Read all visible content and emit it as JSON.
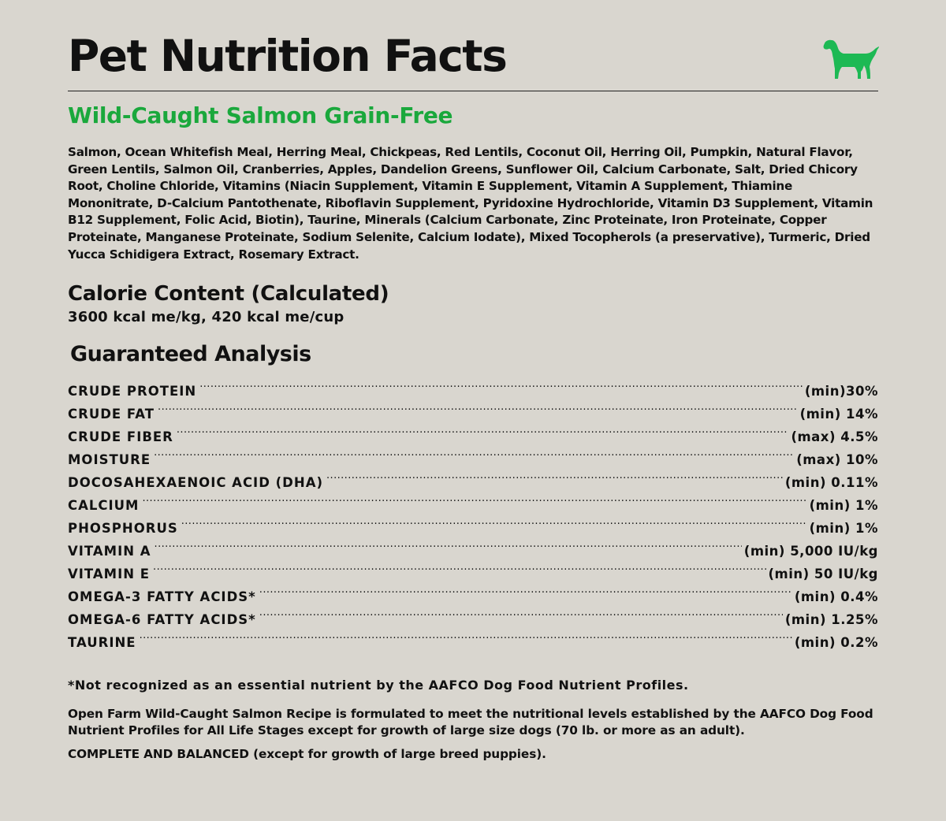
{
  "header": {
    "title": "Pet Nutrition Facts",
    "icon": "dog-icon",
    "accent_color": "#1db954"
  },
  "product": {
    "name": "Wild-Caught Salmon Grain-Free",
    "name_color": "#1aa83c"
  },
  "ingredients": "Salmon, Ocean Whitefish Meal, Herring Meal, Chickpeas, Red Lentils, Coconut Oil, Herring Oil, Pumpkin, Natural Flavor, Green Lentils, Salmon Oil, Cranberries, Apples, Dandelion Greens, Sunflower Oil, Calcium Carbonate, Salt, Dried Chicory Root, Choline Chloride, Vitamins (Niacin Supplement, Vitamin E Supplement, Vitamin A Supplement, Thiamine Mononitrate, D-Calcium Pantothenate, Riboflavin Supplement, Pyridoxine Hydrochloride, Vitamin D3 Supplement, Vitamin B12 Supplement, Folic Acid, Biotin), Taurine, Minerals (Calcium Carbonate, Zinc Proteinate, Iron Proteinate, Copper Proteinate, Manganese Proteinate, Sodium Selenite, Calcium Iodate), Mixed Tocopherols (a preservative), Turmeric, Dried Yucca Schidigera Extract, Rosemary Extract.",
  "calorie": {
    "heading": "Calorie Content (Calculated)",
    "value": "3600 kcal me/kg, 420 kcal me/cup"
  },
  "guaranteed_analysis": {
    "heading": "Guaranteed Analysis",
    "rows": [
      {
        "name": "CRUDE PROTEIN",
        "value": "(min)30%"
      },
      {
        "name": "CRUDE FAT",
        "value": "(min) 14%"
      },
      {
        "name": "CRUDE FIBER",
        "value": "(max) 4.5%"
      },
      {
        "name": "MOISTURE",
        "value": "(max) 10%"
      },
      {
        "name": "DOCOSAHEXAENOIC ACID (DHA)",
        "value": "(min) 0.11%"
      },
      {
        "name": "CALCIUM",
        "value": "(min) 1%"
      },
      {
        "name": "PHOSPHORUS",
        "value": "(min) 1%"
      },
      {
        "name": "VITAMIN A",
        "value": "(min) 5,000 IU/kg"
      },
      {
        "name": "VITAMIN E",
        "value": "(min) 50 IU/kg"
      },
      {
        "name": "OMEGA-3 FATTY ACIDS*",
        "value": "(min) 0.4%"
      },
      {
        "name": "OMEGA-6 FATTY ACIDS*",
        "value": "(min) 1.25%"
      },
      {
        "name": "TAURINE",
        "value": "(min) 0.2%"
      }
    ]
  },
  "footnote": "*Not recognized as an essential nutrient by the AAFCO Dog Food Nutrient Profiles.",
  "statement": "Open Farm Wild-Caught Salmon Recipe is formulated to meet the nutritional levels established by the AAFCO Dog Food Nutrient Profiles for All Life Stages except for growth of large size dogs (70 lb. or more as an adult).",
  "complete": "COMPLETE AND BALANCED (except for growth of large breed puppies)."
}
